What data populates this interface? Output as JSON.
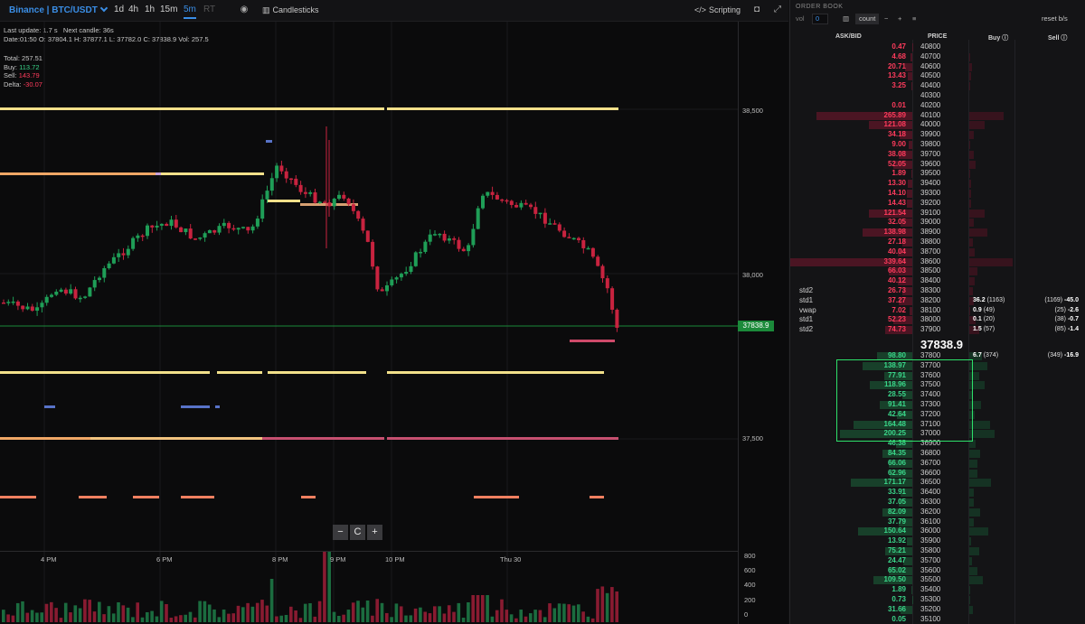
{
  "toolbar": {
    "symbol": "Binance | BTC/USDT",
    "timeframes": [
      "1d",
      "4h",
      "1h",
      "15m",
      "5m",
      "RT"
    ],
    "active_timeframe": "5m",
    "candles_label": "Candlesticks",
    "scripting_label": "Scripting",
    "icons": [
      "eye-icon",
      "bar-chart-icon",
      "code-icon",
      "camera-icon",
      "expand-icon"
    ]
  },
  "info": {
    "last_update_label": "Last update:",
    "last_update": "1.7 s",
    "next_candle_label": "Next candle:",
    "next_candle": "36s",
    "date_label": "Date:",
    "date": "01:50",
    "o_label": "O:",
    "o": "37804.1",
    "h_label": "H:",
    "h": "37877.1",
    "l_label": "L:",
    "l": "37782.0",
    "c_label": "C:",
    "c": "37838.9",
    "vol_label": "Vol:",
    "vol": "257.5"
  },
  "stats": {
    "total_label": "Total:",
    "total": "257.51",
    "buy_label": "Buy:",
    "buy": "113.72",
    "sell_label": "Sell:",
    "sell": "143.79",
    "delta_label": "Delta:",
    "delta": "-30.07"
  },
  "price_scale": [
    "38,500",
    "38,000",
    "37,500"
  ],
  "current_price": "37838.9",
  "time_axis": [
    "4 PM",
    "6 PM",
    "8 PM",
    "9 PM",
    "10 PM",
    "Thu 30"
  ],
  "volume_scale": [
    "800",
    "600",
    "400",
    "200",
    "0"
  ],
  "zoom": {
    "minus": "−",
    "reset": "C",
    "plus": "+"
  },
  "colors": {
    "up": "#1f9e57",
    "down": "#c8233f",
    "ask": "#ff3b5c",
    "bid": "#3ad68a",
    "accent": "#3a8ee6"
  },
  "order_book": {
    "title": "ORDER BOOK",
    "vol_label": "vol",
    "vol_value": "0",
    "count_label": "count",
    "reset_label": "reset b/s",
    "col_askbid": "ASK/BID",
    "col_price": "PRICE",
    "col_buy": "Buy",
    "col_sell": "Sell",
    "last_price": "37838.9",
    "asks": [
      {
        "amt": "0.47",
        "price": "40800"
      },
      {
        "amt": "4.68",
        "price": "40700"
      },
      {
        "amt": "20.71",
        "price": "40600"
      },
      {
        "amt": "13.43",
        "price": "40500"
      },
      {
        "amt": "3.25",
        "price": "40400"
      },
      {
        "amt": "",
        "price": "40300"
      },
      {
        "amt": "0.01",
        "price": "40200"
      },
      {
        "amt": "265.89",
        "price": "40100"
      },
      {
        "amt": "121.08",
        "price": "40000"
      },
      {
        "amt": "34.18",
        "price": "39900"
      },
      {
        "amt": "9.00",
        "price": "39800"
      },
      {
        "amt": "38.08",
        "price": "39700"
      },
      {
        "amt": "52.05",
        "price": "39600"
      },
      {
        "amt": "1.89",
        "price": "39500"
      },
      {
        "amt": "13.30",
        "price": "39400"
      },
      {
        "amt": "14.10",
        "price": "39300"
      },
      {
        "amt": "14.43",
        "price": "39200"
      },
      {
        "amt": "121.54",
        "price": "39100"
      },
      {
        "amt": "32.05",
        "price": "39000"
      },
      {
        "amt": "138.98",
        "price": "38900"
      },
      {
        "amt": "27.18",
        "price": "38800"
      },
      {
        "amt": "40.04",
        "price": "38700"
      },
      {
        "amt": "339.64",
        "price": "38600"
      },
      {
        "amt": "66.03",
        "price": "38500"
      },
      {
        "amt": "40.12",
        "price": "38400"
      },
      {
        "amt": "26.73",
        "price": "38300",
        "label": "std2"
      },
      {
        "amt": "37.27",
        "price": "38200",
        "label": "std1",
        "buy": "36.2",
        "buy_cnt": "(1163)",
        "sell_cnt": "(1169)",
        "sell": "-45.0"
      },
      {
        "amt": "7.02",
        "price": "38100",
        "label": "vwap",
        "buy": "0.9",
        "buy_cnt": "(49)",
        "sell_cnt": "(25)",
        "sell": "-2.6"
      },
      {
        "amt": "52.23",
        "price": "38000",
        "label": "std1",
        "buy": "0.1",
        "buy_cnt": "(20)",
        "sell_cnt": "(38)",
        "sell": "-0.7"
      },
      {
        "amt": "74.73",
        "price": "37900",
        "label": "std2",
        "buy": "1.5",
        "buy_cnt": "(57)",
        "sell_cnt": "(85)",
        "sell": "-1.4"
      }
    ],
    "bids": [
      {
        "amt": "98.80",
        "price": "37800",
        "buy": "6.7",
        "buy_cnt": "(374)",
        "sell_cnt": "(349)",
        "sell": "-16.9"
      },
      {
        "amt": "138.97",
        "price": "37700"
      },
      {
        "amt": "77.91",
        "price": "37600"
      },
      {
        "amt": "118.96",
        "price": "37500"
      },
      {
        "amt": "28.55",
        "price": "37400"
      },
      {
        "amt": "91.41",
        "price": "37300"
      },
      {
        "amt": "42.64",
        "price": "37200"
      },
      {
        "amt": "164.48",
        "price": "37100"
      },
      {
        "amt": "200.25",
        "price": "37000"
      },
      {
        "amt": "46.38",
        "price": "36900"
      },
      {
        "amt": "84.35",
        "price": "36800"
      },
      {
        "amt": "66.06",
        "price": "36700"
      },
      {
        "amt": "62.96",
        "price": "36600"
      },
      {
        "amt": "171.17",
        "price": "36500"
      },
      {
        "amt": "33.91",
        "price": "36400"
      },
      {
        "amt": "37.05",
        "price": "36300"
      },
      {
        "amt": "82.09",
        "price": "36200"
      },
      {
        "amt": "37.79",
        "price": "36100"
      },
      {
        "amt": "150.64",
        "price": "36000"
      },
      {
        "amt": "13.92",
        "price": "35900"
      },
      {
        "amt": "75.21",
        "price": "35800"
      },
      {
        "amt": "24.47",
        "price": "35700"
      },
      {
        "amt": "65.02",
        "price": "35600"
      },
      {
        "amt": "109.50",
        "price": "35500"
      },
      {
        "amt": "1.89",
        "price": "35400"
      },
      {
        "amt": "0.73",
        "price": "35300"
      },
      {
        "amt": "31.66",
        "price": "35200"
      },
      {
        "amt": "0.05",
        "price": "35100"
      }
    ]
  }
}
